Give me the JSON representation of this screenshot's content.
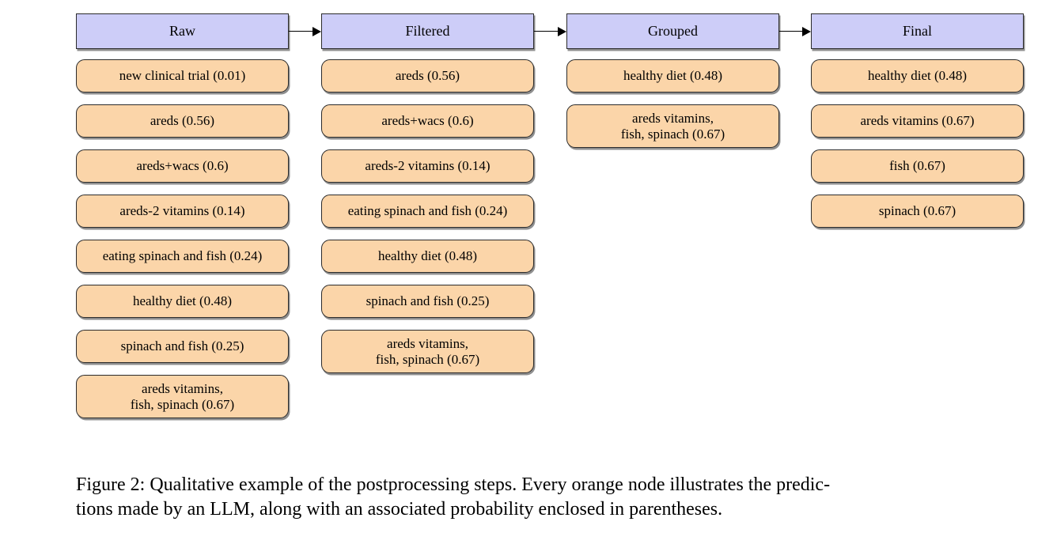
{
  "figure": {
    "stages": [
      {
        "label": "Raw",
        "nodes": [
          "new clinical trial (0.01)",
          "areds (0.56)",
          "areds+wacs (0.6)",
          "areds-2 vitamins (0.14)",
          "eating spinach and fish (0.24)",
          "healthy diet (0.48)",
          "spinach and fish (0.25)",
          "areds vitamins,\nfish, spinach (0.67)"
        ]
      },
      {
        "label": "Filtered",
        "nodes": [
          "areds (0.56)",
          "areds+wacs (0.6)",
          "areds-2 vitamins (0.14)",
          "eating spinach and fish (0.24)",
          "healthy diet (0.48)",
          "spinach and fish (0.25)",
          "areds vitamins,\nfish, spinach (0.67)"
        ]
      },
      {
        "label": "Grouped",
        "nodes": [
          "healthy diet (0.48)",
          "areds vitamins,\nfish, spinach (0.67)"
        ]
      },
      {
        "label": "Final",
        "nodes": [
          "healthy diet (0.48)",
          "areds vitamins (0.67)",
          "fish (0.67)",
          "spinach (0.67)"
        ]
      }
    ],
    "caption": "Figure 2: Qualitative example of the postprocessing steps. Every orange node illustrates the predic-\ntions made by an LLM, along with an associated probability enclosed in parentheses.",
    "colors": {
      "stage_header_fill": "#cdcdf8",
      "node_fill": "#fbd5a9",
      "border": "#2b2b2b",
      "arrow": "#000000"
    }
  }
}
